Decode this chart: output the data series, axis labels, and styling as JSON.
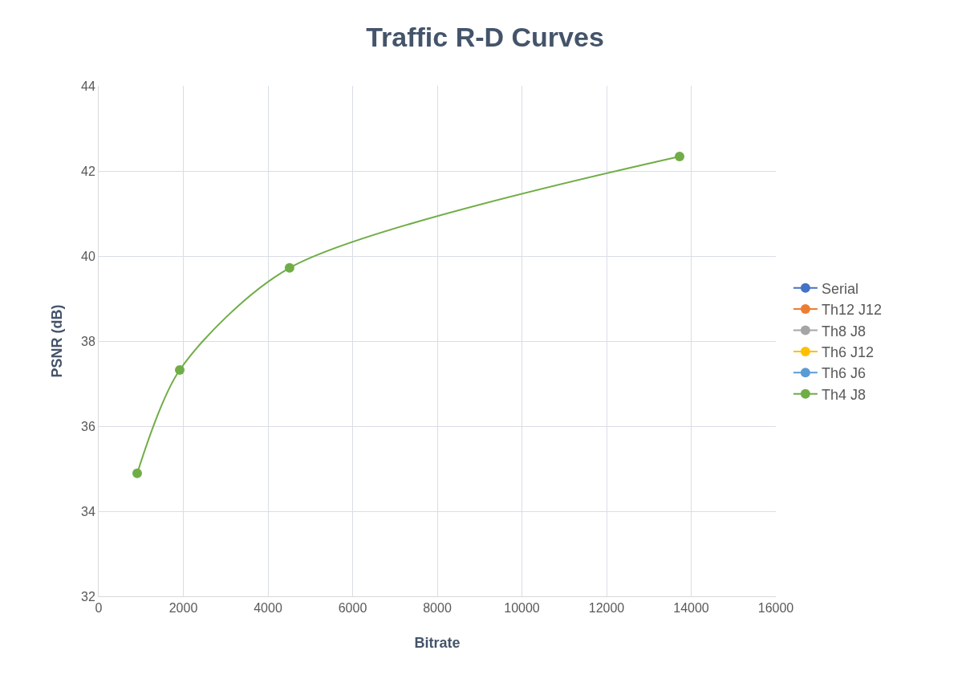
{
  "chart_data": {
    "type": "line",
    "title": "Traffic R-D Curves",
    "xlabel": "Bitrate",
    "ylabel": "PSNR (dB)",
    "x": [
      910,
      1915,
      4510,
      13725
    ],
    "series": [
      {
        "name": "Serial",
        "color": "#4472c4",
        "values": [
          null,
          null,
          null,
          null
        ]
      },
      {
        "name": "Th12 J12",
        "color": "#ed7d31",
        "values": [
          null,
          null,
          null,
          null
        ]
      },
      {
        "name": "Th8 J8",
        "color": "#a5a5a5",
        "values": [
          null,
          null,
          null,
          null
        ]
      },
      {
        "name": "Th6 J12",
        "color": "#ffc000",
        "values": [
          null,
          null,
          null,
          null
        ]
      },
      {
        "name": "Th6 J6",
        "color": "#5b9bd5",
        "values": [
          null,
          null,
          null,
          null
        ]
      },
      {
        "name": "Th4 J8",
        "color": "#70ad47",
        "values": [
          34.89,
          37.32,
          39.72,
          42.34
        ]
      }
    ],
    "xlim": [
      0,
      16000
    ],
    "xticks": [
      0,
      2000,
      4000,
      6000,
      8000,
      10000,
      12000,
      14000,
      16000
    ],
    "ylim": [
      32,
      44
    ],
    "yticks": [
      32,
      34,
      36,
      38,
      40,
      42,
      44
    ],
    "grid": true,
    "legend": "right",
    "marker": "circle",
    "line_style": "solid"
  }
}
